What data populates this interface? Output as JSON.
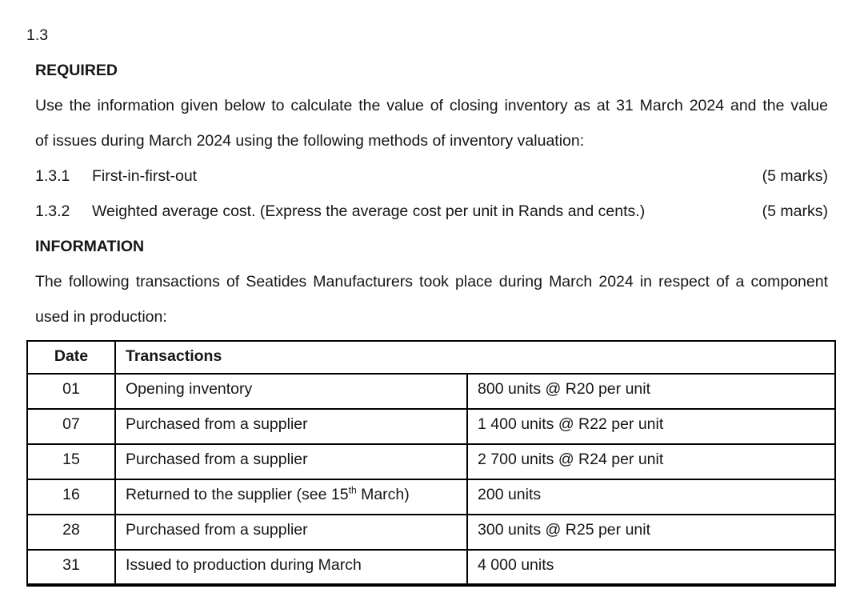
{
  "doc": {
    "section_number": "1.3",
    "required_heading": "REQUIRED",
    "required_paragraph_lines": [
      "Use the information given below to calculate the value of closing inventory as at 31 March 2024 and the value",
      "of issues during March 2024 using the following methods of inventory valuation:"
    ],
    "items": [
      {
        "number": "1.3.1",
        "text": "First-in-first-out",
        "marks": "(5 marks)"
      },
      {
        "number": "1.3.2",
        "text": "Weighted average cost. (Express the average cost per unit in Rands and cents.)",
        "marks": "(5 marks)"
      }
    ],
    "information_heading": "INFORMATION",
    "information_paragraph_lines": [
      "The following transactions of Seatides Manufacturers took place during March 2024 in respect of a component",
      "used in production:"
    ],
    "table": {
      "date_header": "Date",
      "transactions_header": "Transactions",
      "rows": [
        {
          "date": "01",
          "transaction": "Opening inventory",
          "detail": "800 units @ R20 per unit"
        },
        {
          "date": "07",
          "transaction": "Purchased from a supplier",
          "detail": "1 400 units @ R22 per unit"
        },
        {
          "date": "15",
          "transaction": "Purchased from a supplier",
          "detail": "2 700 units @ R24 per unit"
        },
        {
          "date": "16",
          "transaction_parts": [
            "Returned to the supplier (see 15",
            "th",
            " March)"
          ],
          "detail": "200 units"
        },
        {
          "date": "28",
          "transaction": "Purchased from a supplier",
          "detail": "300 units @ R25 per unit"
        },
        {
          "date": "31",
          "transaction": "Issued to production during March",
          "detail": "4 000 units"
        }
      ]
    },
    "colors": {
      "text": "#161616",
      "border": "#000000",
      "background": "#ffffff"
    }
  }
}
